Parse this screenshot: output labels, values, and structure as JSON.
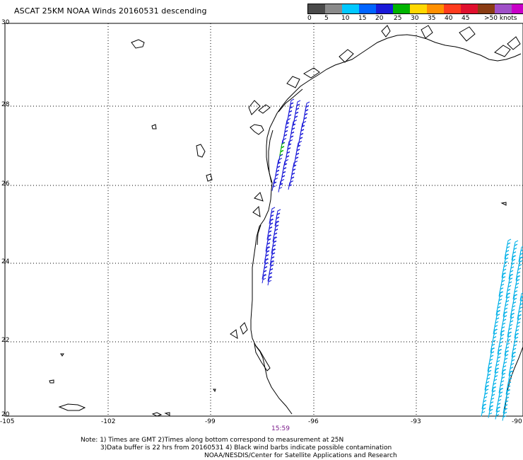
{
  "title": "ASCAT 25KM NOAA Winds 20160531 descending",
  "legend": {
    "colors": [
      "#4a4a4a",
      "#8a8a8a",
      "#00c8ff",
      "#0064ff",
      "#1a1ad8",
      "#00b400",
      "#ffd800",
      "#ff9000",
      "#ff3c1e",
      "#e0102e",
      "#8a3c14",
      "#a050c8",
      "#c800c8",
      "#5a1a8a"
    ],
    "labels": [
      "0",
      "5",
      "10",
      "15",
      "20",
      "25",
      "30",
      "35",
      "40",
      "45",
      ">50 knots"
    ]
  },
  "map": {
    "lat_labels": [
      "30",
      "28",
      "26",
      "24",
      "22",
      "20"
    ],
    "lon_labels": [
      "-105",
      "-102",
      "-99",
      "-96",
      "-93",
      "-90"
    ]
  },
  "time_label": "15:59",
  "notes": {
    "line1": "Note: 1) Times are GMT 2)Times along bottom correspond to measurement at 25N",
    "line2": "3)Data buffer is 22 hrs from 20160531 4) Black wind barbs indicate possible contamination",
    "line3": "NOAA/NESDIS/Center for Satellite Applications and Research"
  }
}
